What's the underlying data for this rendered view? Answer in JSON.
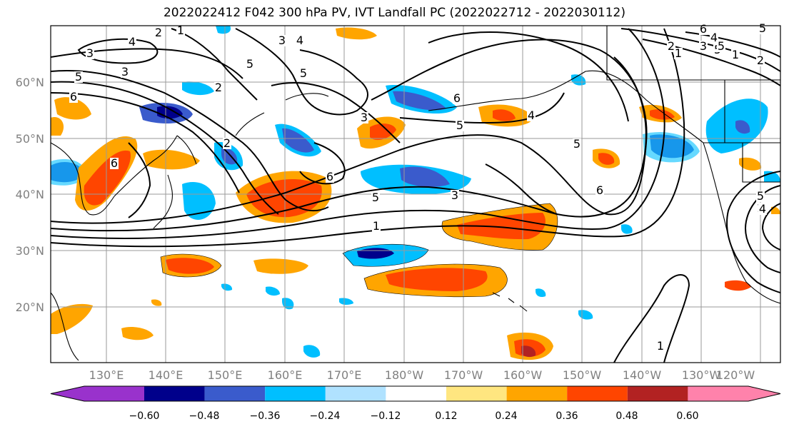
{
  "title": "2022022412 F042 300 hPa PV, IVT Landfall PC (2022022712 - 2022030112)",
  "lat_labels": [
    "60°N",
    "50°N",
    "40°N",
    "30°N",
    "20°N"
  ],
  "lon_labels": [
    "130°E",
    "140°E",
    "150°E",
    "160°E",
    "170°E",
    "180°W",
    "170°W",
    "160°W",
    "150°W",
    "140°W",
    "130°W",
    "120°W"
  ],
  "colorbar": {
    "ticks": [
      "−0.60",
      "−0.48",
      "−0.36",
      "−0.24",
      "−0.12",
      "0.12",
      "0.24",
      "0.36",
      "0.48",
      "0.60"
    ],
    "colors": [
      "#9932CC",
      "#00008B",
      "#3A5BCC",
      "#00BFFF",
      "#B0E2FF",
      "#FFFFFF",
      "#FFE680",
      "#FFA500",
      "#FF4500",
      "#B22222",
      "#FF82AB"
    ]
  },
  "contour_labels": [
    "3",
    "4",
    "2",
    "1",
    "5",
    "3",
    "6",
    "2",
    "5",
    "3",
    "5",
    "6",
    "4",
    "5",
    "1",
    "2",
    "6",
    "3",
    "5",
    "4",
    "6",
    "5",
    "1",
    "4",
    "5",
    "3",
    "6",
    "2",
    "1",
    "6",
    "5",
    "3",
    "1",
    "2",
    "5",
    "4",
    "1",
    "5"
  ]
}
